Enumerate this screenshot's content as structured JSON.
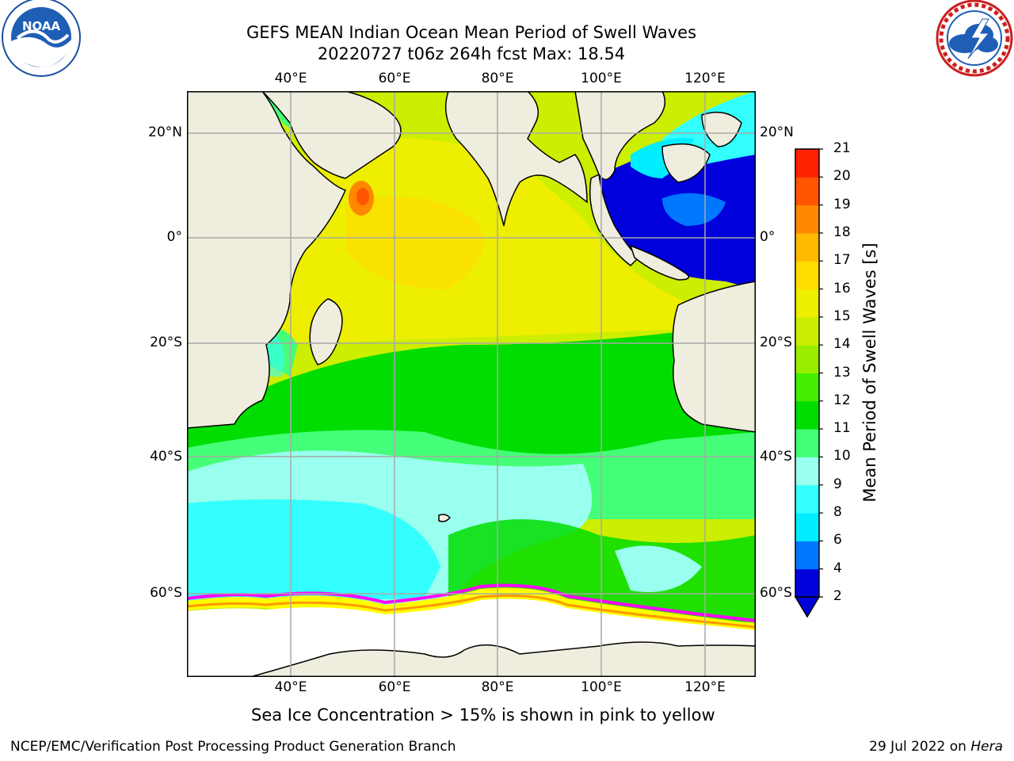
{
  "header": {
    "title_line1": "GEFS MEAN Indian Ocean Mean Period of Swell Waves",
    "title_line2": "20220727 t06z 264h fcst   Max: 18.54"
  },
  "logos": {
    "noaa_text": "NOAA",
    "nws_icon": "nws-lightning-cloud-icon",
    "noaa_icon": "noaa-bird-icon"
  },
  "map": {
    "lon_ticks": [
      "40°E",
      "60°E",
      "80°E",
      "100°E",
      "120°E"
    ],
    "lat_ticks_left": [
      "20°N",
      "0°",
      "20°S",
      "40°S",
      "60°S"
    ],
    "lat_ticks_right": [
      "20°N",
      "0°",
      "20°S",
      "40°S",
      "60°S"
    ],
    "land_color": "#efedde",
    "ice_colors": [
      "#ff00ff",
      "#ff9900",
      "#ffff00"
    ]
  },
  "colorbar": {
    "label": "Mean Period of Swell Waves [s]",
    "ticks": [
      "2",
      "4",
      "6",
      "8",
      "9",
      "10",
      "11",
      "12",
      "13",
      "14",
      "15",
      "16",
      "17",
      "18",
      "19",
      "20",
      "21"
    ],
    "colors": [
      "#0000dd",
      "#0077ff",
      "#00eeff",
      "#33ffff",
      "#99ffee",
      "#44ff77",
      "#00dd00",
      "#44ee00",
      "#99ee00",
      "#ccee00",
      "#eeee00",
      "#ffdd00",
      "#ffbb00",
      "#ff8800",
      "#ff5500",
      "#ff2200"
    ],
    "extend": "min"
  },
  "caption": "Sea Ice Concentration > 15% is shown in pink to yellow",
  "footer": {
    "left": "NCEP/EMC/Verification Post Processing Product Generation Branch",
    "right_date": "29 Jul 2022 on ",
    "right_host": "Hera"
  }
}
